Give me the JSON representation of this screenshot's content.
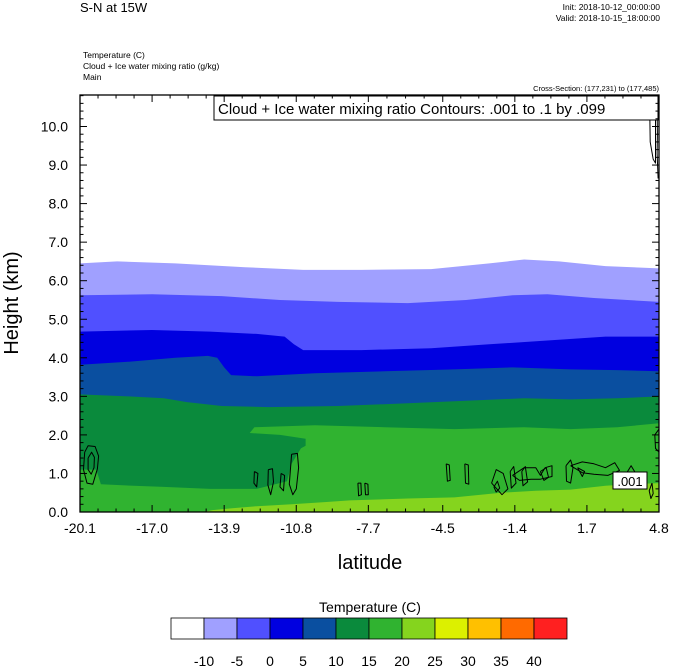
{
  "header": {
    "title": "S-N at 15W",
    "init": "Init: 2018-10-12_00:00:00",
    "valid": "Valid: 2018-10-15_18:00:00",
    "fields": [
      "Temperature   (C)",
      "Cloud + Ice water mixing ratio   (g/kg)",
      "Main"
    ],
    "cross_section": "Cross-Section: (177,231) to (177,485)"
  },
  "chart_data": {
    "type": "contour",
    "contour_info": "Cloud + Ice water mixing ratio Contours: .001 to .1 by .099",
    "contour_label": ".001",
    "xlabel": "latitude",
    "ylabel": "Height (km)",
    "xlim": [
      -20.1,
      4.8
    ],
    "ylim": [
      0,
      10.8
    ],
    "xticks": [
      -20.1,
      -17.0,
      -13.9,
      -10.8,
      -7.7,
      -4.5,
      -1.4,
      1.7,
      4.8
    ],
    "xtick_labels": [
      "-20.1",
      "-17.0",
      "-13.9",
      "-10.8",
      "-7.7",
      "-4.5",
      "-1.4",
      "1.7",
      "4.8"
    ],
    "yticks": [
      0,
      1,
      2,
      3,
      4,
      5,
      6,
      7,
      8,
      9,
      10
    ],
    "ytick_labels": [
      "0.0",
      "1.0",
      "2.0",
      "3.0",
      "4.0",
      "5.0",
      "6.0",
      "7.0",
      "8.0",
      "9.0",
      "10.0"
    ],
    "temperature_bands": [
      {
        "color": "#a0a0ff",
        "top": [
          [
            -20.1,
            6.45
          ],
          [
            -18.5,
            6.5
          ],
          [
            -16,
            6.45
          ],
          [
            -13,
            6.35
          ],
          [
            -10.5,
            6.28
          ],
          [
            -8,
            6.28
          ],
          [
            -5,
            6.3
          ],
          [
            -2.5,
            6.45
          ],
          [
            -1,
            6.55
          ],
          [
            0.5,
            6.5
          ],
          [
            2.5,
            6.38
          ],
          [
            4.8,
            6.32
          ]
        ]
      },
      {
        "color": "#5050ff",
        "top": [
          [
            -20.1,
            5.62
          ],
          [
            -17,
            5.65
          ],
          [
            -14,
            5.6
          ],
          [
            -11.5,
            5.5
          ],
          [
            -9,
            5.45
          ],
          [
            -6,
            5.42
          ],
          [
            -3.5,
            5.5
          ],
          [
            -1.5,
            5.62
          ],
          [
            0,
            5.65
          ],
          [
            2,
            5.55
          ],
          [
            4.8,
            5.45
          ]
        ]
      },
      {
        "color": "#0000e0",
        "top": [
          [
            -20.1,
            4.68
          ],
          [
            -17,
            4.72
          ],
          [
            -14.5,
            4.68
          ],
          [
            -12.5,
            4.62
          ],
          [
            -11.3,
            4.55
          ],
          [
            -10.9,
            4.35
          ],
          [
            -10.5,
            4.2
          ],
          [
            -8,
            4.2
          ],
          [
            -5,
            4.25
          ],
          [
            -2.5,
            4.35
          ],
          [
            0,
            4.45
          ],
          [
            2.5,
            4.55
          ],
          [
            4.8,
            4.55
          ]
        ]
      },
      {
        "color": "#0a4fa0",
        "top": [
          [
            -20.1,
            3.82
          ],
          [
            -18,
            3.9
          ],
          [
            -16,
            4.0
          ],
          [
            -14.6,
            4.05
          ],
          [
            -14.2,
            4.0
          ],
          [
            -13.9,
            3.75
          ],
          [
            -13.6,
            3.55
          ],
          [
            -12.5,
            3.52
          ],
          [
            -10,
            3.6
          ],
          [
            -7,
            3.65
          ],
          [
            -4,
            3.7
          ],
          [
            -1.5,
            3.75
          ],
          [
            1,
            3.7
          ],
          [
            3,
            3.68
          ],
          [
            4.8,
            3.65
          ]
        ]
      },
      {
        "color": "#0a8a3c",
        "top": [
          [
            -20.1,
            3.05
          ],
          [
            -18,
            3.0
          ],
          [
            -16.5,
            2.95
          ],
          [
            -15.5,
            2.85
          ],
          [
            -14,
            2.75
          ],
          [
            -12,
            2.72
          ],
          [
            -9,
            2.75
          ],
          [
            -6,
            2.82
          ],
          [
            -3,
            2.9
          ],
          [
            -1,
            2.95
          ],
          [
            1,
            2.92
          ],
          [
            3,
            2.95
          ],
          [
            4.8,
            3.0
          ]
        ]
      },
      {
        "color": "#30b330",
        "top": [
          [
            -20.1,
            1.1
          ],
          [
            -19.4,
            1.1
          ],
          [
            -19.2,
            0.72
          ],
          [
            -17.8,
            0.68
          ],
          [
            -16.5,
            0.65
          ],
          [
            -14.5,
            0.6
          ],
          [
            -12.5,
            0.6
          ],
          [
            -11.2,
            0.8
          ],
          [
            -11.0,
            1.25
          ],
          [
            -10.6,
            1.65
          ],
          [
            -10.4,
            1.72
          ],
          [
            -10.4,
            1.9
          ],
          [
            -11.5,
            2.0
          ],
          [
            -12.8,
            2.05
          ],
          [
            -12.6,
            2.2
          ],
          [
            -10,
            2.25
          ],
          [
            -7,
            2.2
          ],
          [
            -4,
            2.15
          ],
          [
            -1,
            2.2
          ],
          [
            1,
            2.15
          ],
          [
            3,
            2.2
          ],
          [
            4.8,
            2.3
          ]
        ]
      },
      {
        "color": "#85d41e",
        "top": [
          [
            -20.1,
            0
          ],
          [
            -14.8,
            0
          ],
          [
            -14.4,
            0.05
          ],
          [
            -13.5,
            0.1
          ],
          [
            -12.5,
            0.15
          ],
          [
            -11,
            0.2
          ],
          [
            -9.5,
            0.26
          ],
          [
            -8.5,
            0.3
          ],
          [
            -6,
            0.35
          ],
          [
            -4,
            0.38
          ],
          [
            -2,
            0.5
          ],
          [
            -0.5,
            0.55
          ],
          [
            1,
            0.58
          ],
          [
            2.5,
            0.68
          ],
          [
            3.5,
            0.72
          ],
          [
            4.8,
            0.75
          ]
        ]
      }
    ],
    "legend": {
      "title": "Temperature  (C)",
      "colors": [
        "#ffffff",
        "#a0a0ff",
        "#5050ff",
        "#0000e0",
        "#0a4fa0",
        "#0a8a3c",
        "#30b330",
        "#85d41e",
        "#dcf000",
        "#ffc000",
        "#ff6a00",
        "#ff2020"
      ],
      "labels": [
        "-10",
        "-5",
        "0",
        "5",
        "10",
        "15",
        "20",
        "25",
        "30",
        "35",
        "40"
      ]
    },
    "cloud_contours": [
      [
        [
          -19.9,
          1.55
        ],
        [
          -19.75,
          1.72
        ],
        [
          -19.45,
          1.7
        ],
        [
          -19.3,
          1.45
        ],
        [
          -19.35,
          1.12
        ],
        [
          -19.55,
          0.72
        ],
        [
          -19.8,
          0.75
        ],
        [
          -19.95,
          1.1
        ],
        [
          -19.9,
          1.55
        ]
      ],
      [
        [
          -19.75,
          1.4
        ],
        [
          -19.6,
          1.55
        ],
        [
          -19.48,
          1.42
        ],
        [
          -19.5,
          1.15
        ],
        [
          -19.62,
          0.98
        ],
        [
          -19.75,
          1.1
        ],
        [
          -19.75,
          1.4
        ]
      ],
      [
        [
          -11.0,
          1.5
        ],
        [
          -10.75,
          1.52
        ],
        [
          -10.7,
          1.15
        ],
        [
          -10.8,
          0.6
        ],
        [
          -10.95,
          0.45
        ],
        [
          -11.1,
          0.72
        ],
        [
          -11.0,
          1.5
        ]
      ],
      [
        [
          -12.0,
          1.1
        ],
        [
          -11.82,
          1.12
        ],
        [
          -11.78,
          0.78
        ],
        [
          -11.9,
          0.45
        ],
        [
          -12.02,
          0.7
        ],
        [
          -12.0,
          1.1
        ]
      ],
      [
        [
          -12.6,
          1.05
        ],
        [
          -12.45,
          1.0
        ],
        [
          -12.5,
          0.65
        ],
        [
          -12.62,
          0.75
        ],
        [
          -12.6,
          1.05
        ]
      ],
      [
        [
          -11.45,
          1.0
        ],
        [
          -11.3,
          0.95
        ],
        [
          -11.35,
          0.55
        ],
        [
          -11.5,
          0.65
        ],
        [
          -11.45,
          1.0
        ]
      ],
      [
        [
          -8.15,
          0.75
        ],
        [
          -8.02,
          0.75
        ],
        [
          -8.0,
          0.45
        ],
        [
          -8.12,
          0.42
        ],
        [
          -8.15,
          0.75
        ]
      ],
      [
        [
          -7.85,
          0.75
        ],
        [
          -7.72,
          0.72
        ],
        [
          -7.7,
          0.45
        ],
        [
          -7.82,
          0.45
        ],
        [
          -7.85,
          0.75
        ]
      ],
      [
        [
          -4.35,
          1.25
        ],
        [
          -4.22,
          1.22
        ],
        [
          -4.18,
          0.82
        ],
        [
          -4.3,
          0.8
        ],
        [
          -4.35,
          1.25
        ]
      ],
      [
        [
          -3.55,
          1.25
        ],
        [
          -3.4,
          1.22
        ],
        [
          -3.38,
          0.72
        ],
        [
          -3.52,
          0.75
        ],
        [
          -3.55,
          1.25
        ]
      ],
      [
        [
          -2.4,
          0.75
        ],
        [
          -2.2,
          1.1
        ],
        [
          -1.9,
          1.0
        ],
        [
          -1.7,
          0.6
        ],
        [
          -1.95,
          0.45
        ],
        [
          -2.4,
          0.75
        ]
      ],
      [
        [
          -2.3,
          0.65
        ],
        [
          -2.15,
          0.8
        ],
        [
          -2.05,
          0.62
        ],
        [
          -2.2,
          0.52
        ],
        [
          -2.3,
          0.65
        ]
      ],
      [
        [
          -1.6,
          1.05
        ],
        [
          -1.45,
          1.18
        ],
        [
          -1.35,
          0.75
        ],
        [
          -1.55,
          0.62
        ],
        [
          -1.6,
          1.05
        ]
      ],
      [
        [
          -1.1,
          1.05
        ],
        [
          -0.95,
          1.18
        ],
        [
          -0.85,
          0.78
        ],
        [
          -1.05,
          0.68
        ],
        [
          -1.1,
          1.05
        ]
      ],
      [
        [
          -0.3,
          1.05
        ],
        [
          -0.05,
          1.15
        ],
        [
          0.05,
          0.9
        ],
        [
          -0.15,
          0.82
        ],
        [
          -0.3,
          1.05
        ]
      ],
      [
        [
          -1.5,
          0.95
        ],
        [
          -1.0,
          1.15
        ],
        [
          -0.5,
          1.15
        ],
        [
          -0.3,
          0.95
        ],
        [
          -0.1,
          1.15
        ],
        [
          0.2,
          1.2
        ],
        [
          0.2,
          0.92
        ],
        [
          -0.3,
          0.85
        ],
        [
          -0.7,
          0.85
        ],
        [
          -1.2,
          0.82
        ],
        [
          -1.5,
          0.95
        ]
      ],
      [
        [
          0.8,
          1.2
        ],
        [
          1.0,
          1.35
        ],
        [
          1.1,
          1.15
        ],
        [
          1.0,
          0.75
        ],
        [
          0.82,
          0.8
        ],
        [
          0.8,
          1.2
        ]
      ],
      [
        [
          1.0,
          1.2
        ],
        [
          1.5,
          1.3
        ],
        [
          2.0,
          1.25
        ],
        [
          2.5,
          1.15
        ],
        [
          2.9,
          1.28
        ],
        [
          3.1,
          1.08
        ],
        [
          2.6,
          0.95
        ],
        [
          2.0,
          0.98
        ],
        [
          1.5,
          1.02
        ],
        [
          1.0,
          1.2
        ]
      ],
      [
        [
          1.3,
          1.15
        ],
        [
          1.6,
          1.05
        ],
        [
          1.5,
          0.92
        ],
        [
          1.3,
          1.15
        ]
      ],
      [
        [
          3.4,
          1.0
        ],
        [
          3.6,
          1.2
        ],
        [
          3.8,
          1.0
        ],
        [
          3.6,
          0.65
        ],
        [
          3.42,
          0.7
        ],
        [
          3.4,
          1.0
        ]
      ],
      [
        [
          4.5,
          0.75
        ],
        [
          4.55,
          0.48
        ],
        [
          4.45,
          0.35
        ],
        [
          4.38,
          0.55
        ],
        [
          4.5,
          0.75
        ]
      ],
      [
        [
          4.62,
          2.0
        ],
        [
          4.8,
          2.15
        ],
        [
          4.8,
          1.55
        ],
        [
          4.65,
          1.65
        ],
        [
          4.62,
          2.0
        ]
      ],
      [
        [
          4.4,
          10.5
        ],
        [
          4.42,
          9.6
        ],
        [
          4.55,
          9.15
        ],
        [
          4.65,
          9.05
        ],
        [
          4.65,
          10.2
        ],
        [
          4.6,
          10.5
        ]
      ],
      [
        [
          4.72,
          10.5
        ],
        [
          4.73,
          9.8
        ],
        [
          4.72,
          9.3
        ],
        [
          4.76,
          8.65
        ]
      ]
    ]
  }
}
